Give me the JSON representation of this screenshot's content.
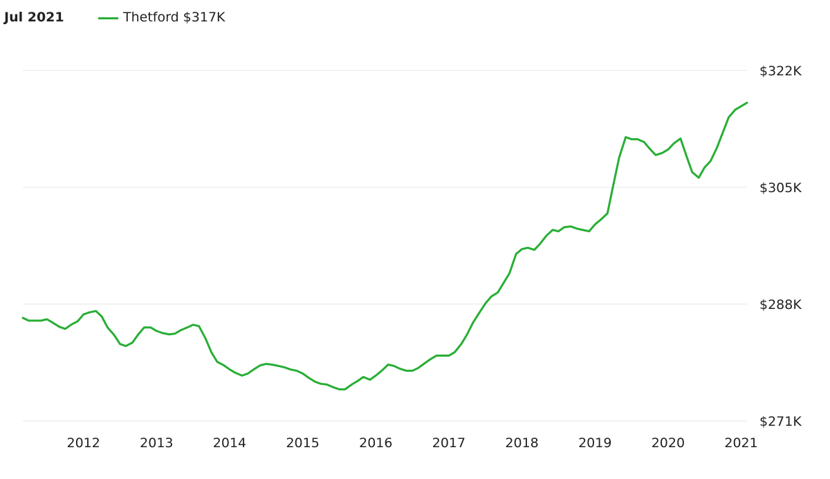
{
  "header": {
    "date_label": "Jul 2021",
    "legend_label": "Thetford $317K"
  },
  "colors": {
    "series": "#27ae34",
    "grid": "#e6e6e6"
  },
  "chart_data": {
    "type": "line",
    "title": "",
    "xlabel": "",
    "ylabel": "",
    "x_tick_labels": [
      "2012",
      "2013",
      "2014",
      "2015",
      "2016",
      "2017",
      "2018",
      "2019",
      "2020",
      "2021"
    ],
    "y_tick_labels": [
      "$322K",
      "$305K",
      "$288K",
      "$271K"
    ],
    "y_ticks": [
      322,
      305,
      288,
      271
    ],
    "ylim": [
      271,
      322
    ],
    "xlim": [
      2011.67,
      2021.58
    ],
    "y_axis_position": "right",
    "grid": true,
    "legend_position": "top-left",
    "series": [
      {
        "name": "Thetford",
        "points": [
          [
            2011.67,
            286.0
          ],
          [
            2011.75,
            285.6
          ],
          [
            2011.83,
            285.6
          ],
          [
            2011.92,
            285.6
          ],
          [
            2012.0,
            285.8
          ],
          [
            2012.08,
            285.3
          ],
          [
            2012.17,
            284.7
          ],
          [
            2012.25,
            284.4
          ],
          [
            2012.33,
            285.0
          ],
          [
            2012.42,
            285.5
          ],
          [
            2012.5,
            286.5
          ],
          [
            2012.58,
            286.8
          ],
          [
            2012.67,
            287.0
          ],
          [
            2012.75,
            286.2
          ],
          [
            2012.83,
            284.6
          ],
          [
            2012.92,
            283.5
          ],
          [
            2013.0,
            282.2
          ],
          [
            2013.08,
            281.9
          ],
          [
            2013.17,
            282.4
          ],
          [
            2013.25,
            283.6
          ],
          [
            2013.33,
            284.6
          ],
          [
            2013.42,
            284.6
          ],
          [
            2013.5,
            284.1
          ],
          [
            2013.58,
            283.8
          ],
          [
            2013.67,
            283.6
          ],
          [
            2013.75,
            283.7
          ],
          [
            2013.83,
            284.2
          ],
          [
            2013.92,
            284.6
          ],
          [
            2014.0,
            285.0
          ],
          [
            2014.08,
            284.8
          ],
          [
            2014.17,
            283.0
          ],
          [
            2014.25,
            281.0
          ],
          [
            2014.33,
            279.6
          ],
          [
            2014.42,
            279.1
          ],
          [
            2014.5,
            278.5
          ],
          [
            2014.58,
            278.0
          ],
          [
            2014.67,
            277.6
          ],
          [
            2014.75,
            277.9
          ],
          [
            2014.83,
            278.5
          ],
          [
            2014.92,
            279.1
          ],
          [
            2015.0,
            279.3
          ],
          [
            2015.08,
            279.2
          ],
          [
            2015.17,
            279.0
          ],
          [
            2015.25,
            278.8
          ],
          [
            2015.33,
            278.5
          ],
          [
            2015.42,
            278.3
          ],
          [
            2015.5,
            277.9
          ],
          [
            2015.58,
            277.3
          ],
          [
            2015.67,
            276.7
          ],
          [
            2015.75,
            276.4
          ],
          [
            2015.83,
            276.3
          ],
          [
            2015.92,
            275.9
          ],
          [
            2016.0,
            275.6
          ],
          [
            2016.08,
            275.6
          ],
          [
            2016.17,
            276.3
          ],
          [
            2016.25,
            276.8
          ],
          [
            2016.33,
            277.4
          ],
          [
            2016.42,
            277.0
          ],
          [
            2016.5,
            277.6
          ],
          [
            2016.58,
            278.3
          ],
          [
            2016.67,
            279.2
          ],
          [
            2016.75,
            279.0
          ],
          [
            2016.83,
            278.6
          ],
          [
            2016.92,
            278.3
          ],
          [
            2017.0,
            278.3
          ],
          [
            2017.08,
            278.7
          ],
          [
            2017.17,
            279.4
          ],
          [
            2017.25,
            280.0
          ],
          [
            2017.33,
            280.5
          ],
          [
            2017.42,
            280.5
          ],
          [
            2017.5,
            280.5
          ],
          [
            2017.58,
            281.0
          ],
          [
            2017.67,
            282.2
          ],
          [
            2017.75,
            283.6
          ],
          [
            2017.83,
            285.3
          ],
          [
            2017.92,
            286.8
          ],
          [
            2018.0,
            288.1
          ],
          [
            2018.08,
            289.1
          ],
          [
            2018.17,
            289.7
          ],
          [
            2018.25,
            291.1
          ],
          [
            2018.33,
            292.5
          ],
          [
            2018.42,
            295.3
          ],
          [
            2018.5,
            296.0
          ],
          [
            2018.58,
            296.2
          ],
          [
            2018.67,
            295.9
          ],
          [
            2018.75,
            296.8
          ],
          [
            2018.83,
            297.9
          ],
          [
            2018.92,
            298.8
          ],
          [
            2019.0,
            298.6
          ],
          [
            2019.08,
            299.2
          ],
          [
            2019.17,
            299.3
          ],
          [
            2019.25,
            299.0
          ],
          [
            2019.33,
            298.8
          ],
          [
            2019.42,
            298.6
          ],
          [
            2019.5,
            299.6
          ],
          [
            2019.58,
            300.3
          ],
          [
            2019.67,
            301.2
          ],
          [
            2019.75,
            305.3
          ],
          [
            2019.83,
            309.3
          ],
          [
            2019.92,
            312.3
          ],
          [
            2020.0,
            312.0
          ],
          [
            2020.08,
            312.0
          ],
          [
            2020.17,
            311.6
          ],
          [
            2020.25,
            310.6
          ],
          [
            2020.33,
            309.7
          ],
          [
            2020.42,
            310.0
          ],
          [
            2020.5,
            310.5
          ],
          [
            2020.58,
            311.4
          ],
          [
            2020.67,
            312.1
          ],
          [
            2020.75,
            309.6
          ],
          [
            2020.83,
            307.2
          ],
          [
            2020.92,
            306.4
          ],
          [
            2021.0,
            307.9
          ],
          [
            2021.08,
            308.8
          ],
          [
            2021.17,
            310.8
          ],
          [
            2021.25,
            313.0
          ],
          [
            2021.33,
            315.2
          ],
          [
            2021.42,
            316.3
          ],
          [
            2021.5,
            316.8
          ],
          [
            2021.58,
            317.3
          ]
        ]
      }
    ]
  }
}
